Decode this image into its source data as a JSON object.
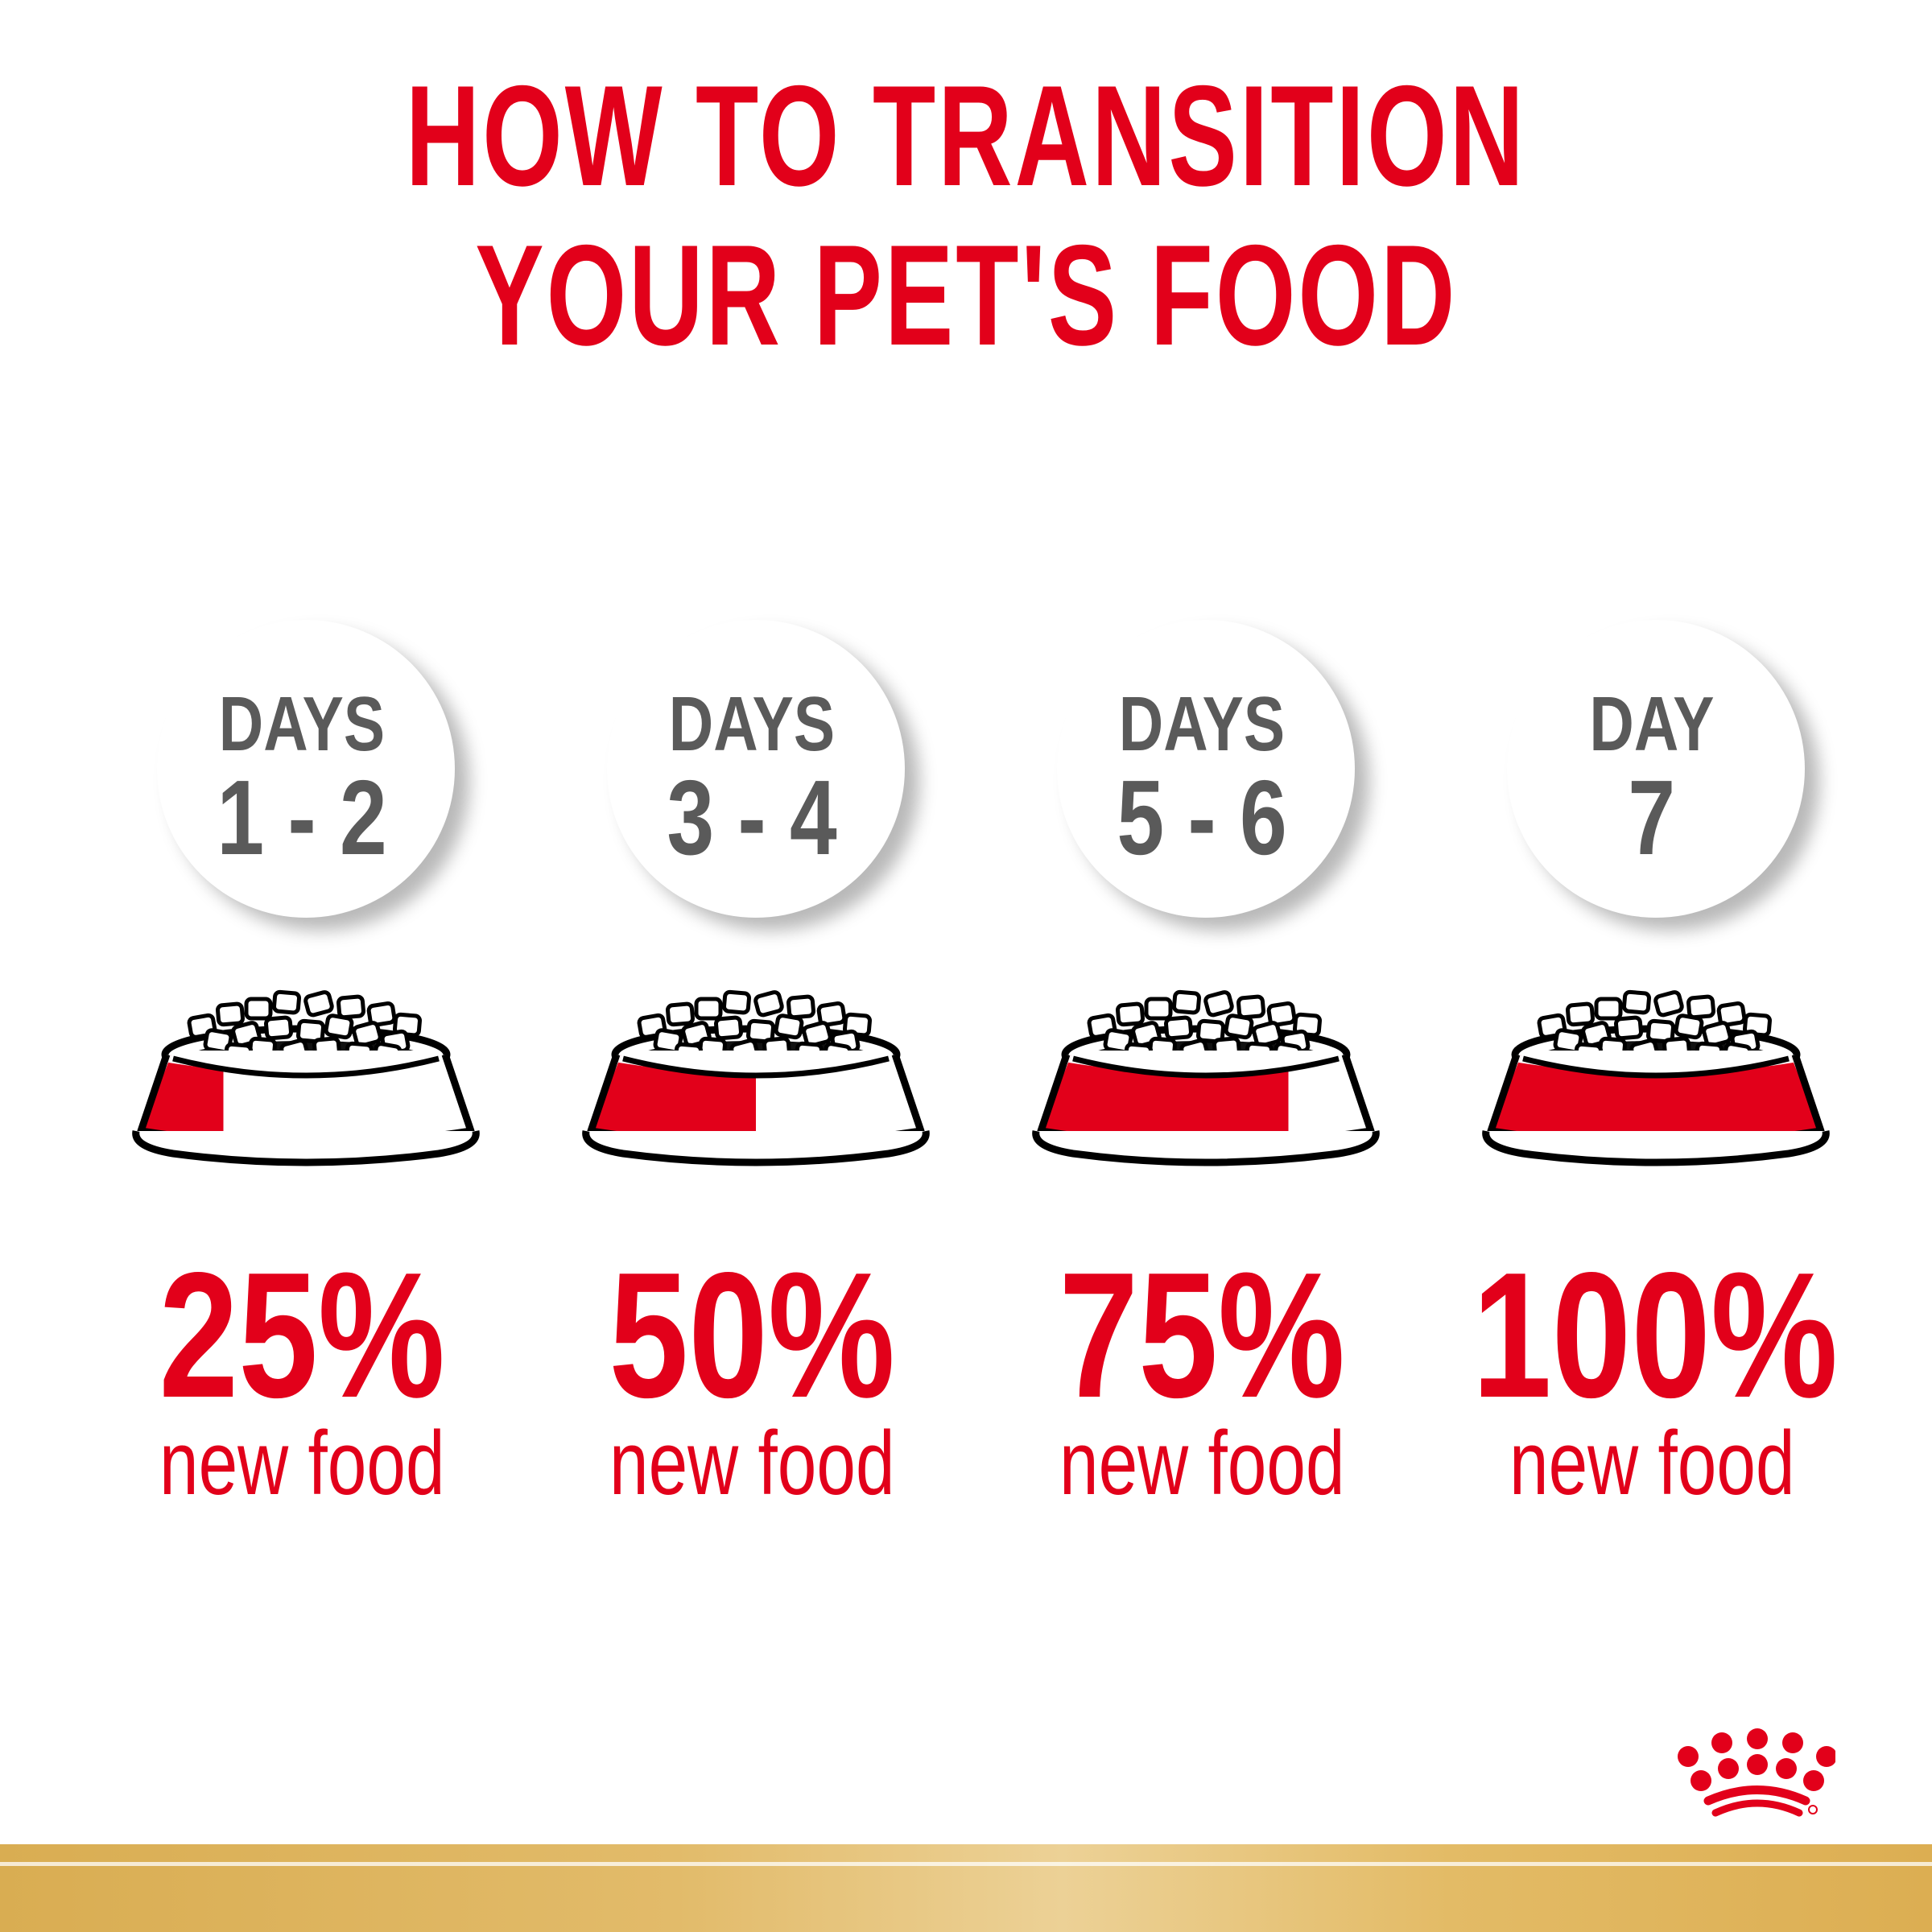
{
  "title": {
    "line1": "HOW TO TRANSITION",
    "line2": "YOUR PET'S FOOD"
  },
  "steps": [
    {
      "days_label": "DAYS",
      "days": "1 - 2",
      "percent": "25%",
      "caption": "new food",
      "new_food_fraction": 0.25
    },
    {
      "days_label": "DAYS",
      "days": "3 - 4",
      "percent": "50%",
      "caption": "new food",
      "new_food_fraction": 0.5
    },
    {
      "days_label": "DAYS",
      "days": "5 - 6",
      "percent": "75%",
      "caption": "new food",
      "new_food_fraction": 0.75
    },
    {
      "days_label": "DAY",
      "days": "7",
      "percent": "100%",
      "caption": "new food",
      "new_food_fraction": 1.0
    }
  ],
  "colors": {
    "brand_red": "#e2001a",
    "text_gray": "#5a5a5a",
    "gold": "#dcb052"
  },
  "logo": {
    "name": "crown-logo-icon"
  }
}
